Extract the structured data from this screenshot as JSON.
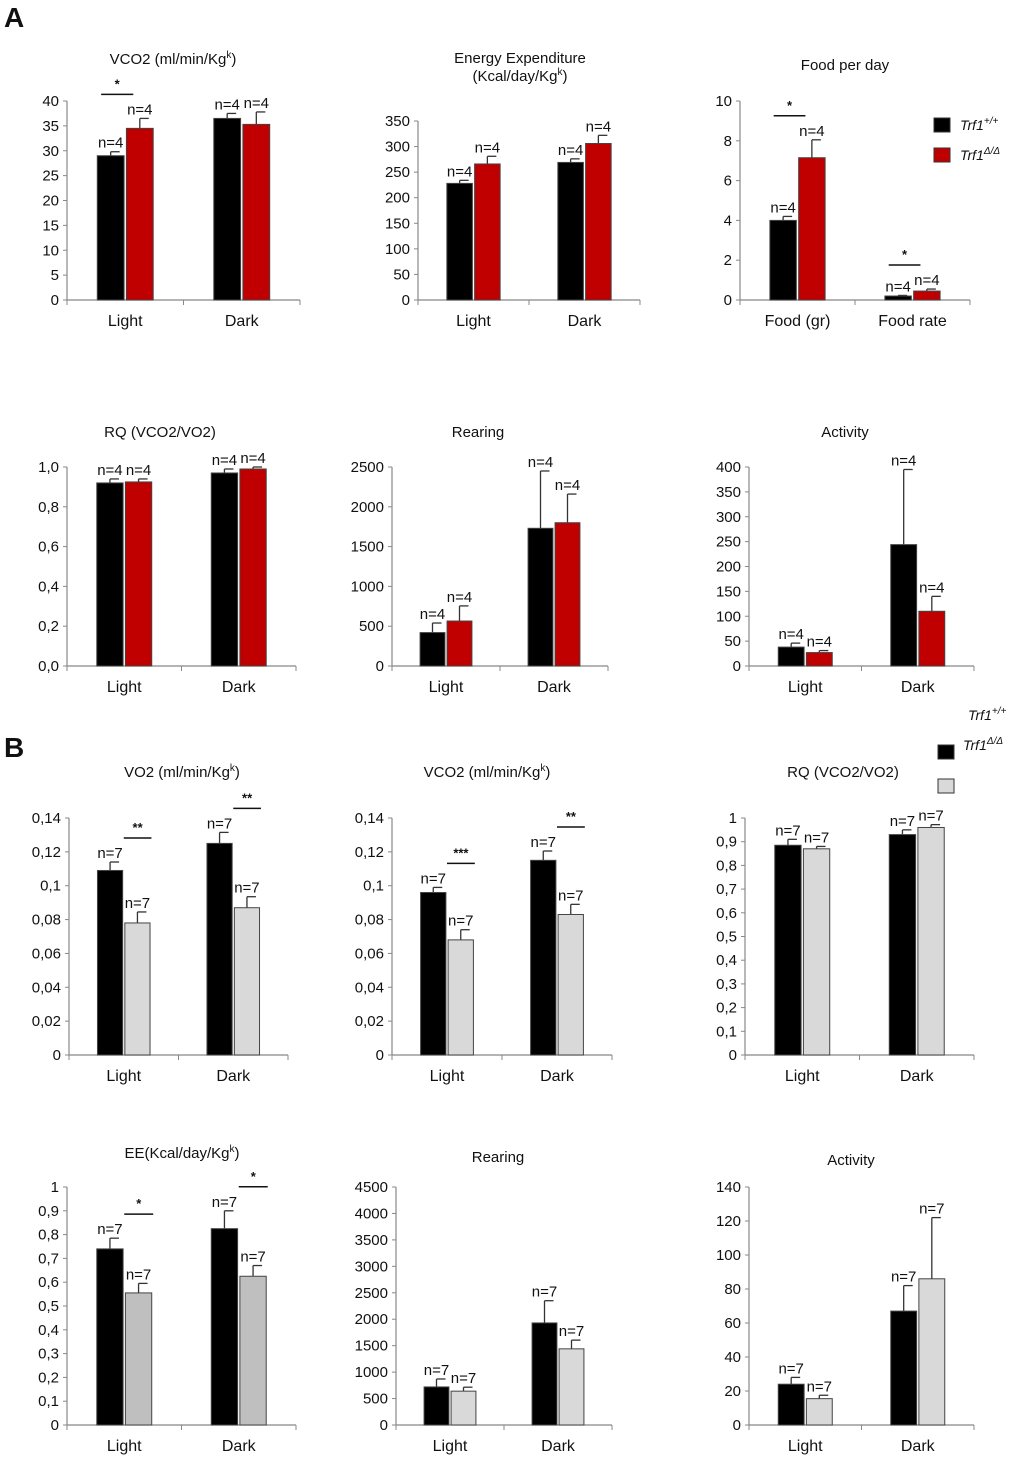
{
  "figure": {
    "panel_labels": [
      "A",
      "B"
    ]
  },
  "chart_data": [
    {
      "panel": "A",
      "type": "bar",
      "title": "VCO2 (ml/min/Kg",
      "title_sup": "k",
      "title_end": ")",
      "categories": [
        "Light",
        "Dark"
      ],
      "series": [
        {
          "name": "Trf1+/+",
          "color": "#000000",
          "values": [
            29,
            36.5
          ],
          "errors": [
            0.8,
            1.0
          ],
          "n": [
            "n=4",
            "n=4"
          ]
        },
        {
          "name": "Trf1Δ/Δ",
          "color": "#c00000",
          "values": [
            34.5,
            35.3
          ],
          "errors": [
            2.0,
            2.5
          ],
          "n": [
            "n=4",
            "n=4"
          ]
        }
      ],
      "ylim": [
        0,
        40
      ],
      "yticks": [
        "0",
        "5",
        "10",
        "15",
        "20",
        "25",
        "30",
        "35",
        "40"
      ],
      "ytick_values": [
        0,
        5,
        10,
        15,
        20,
        25,
        30,
        35,
        40
      ],
      "significance": [
        {
          "category": "Light",
          "label": "*"
        }
      ]
    },
    {
      "panel": "A",
      "type": "bar",
      "title": "Energy Expenditure",
      "title_line2": "(Kcal/day/Kg",
      "title_sup": "k",
      "title_end": ")",
      "categories": [
        "Light",
        "Dark"
      ],
      "series": [
        {
          "name": "Trf1+/+",
          "color": "#000000",
          "values": [
            228,
            269
          ],
          "errors": [
            6,
            7
          ],
          "n": [
            "n=4",
            "n=4"
          ]
        },
        {
          "name": "Trf1Δ/Δ",
          "color": "#c00000",
          "values": [
            266,
            306
          ],
          "errors": [
            15,
            16
          ],
          "n": [
            "n=4",
            "n=4"
          ]
        }
      ],
      "ylim": [
        0,
        350
      ],
      "yticks": [
        "0",
        "50",
        "100",
        "150",
        "200",
        "250",
        "300",
        "350"
      ],
      "ytick_values": [
        0,
        50,
        100,
        150,
        200,
        250,
        300,
        350
      ],
      "significance": []
    },
    {
      "panel": "A",
      "type": "bar",
      "title": "Food per day",
      "categories": [
        "Food (gr)",
        "Food rate"
      ],
      "series": [
        {
          "name": "Trf1+/+",
          "color": "#000000",
          "values": [
            4.0,
            0.2
          ],
          "errors": [
            0.2,
            0.03
          ],
          "n": [
            "n=4",
            "n=4"
          ]
        },
        {
          "name": "Trf1Δ/Δ",
          "color": "#c00000",
          "values": [
            7.15,
            0.45
          ],
          "errors": [
            0.9,
            0.1
          ],
          "n": [
            "n=4",
            "n=4"
          ]
        }
      ],
      "ylim": [
        0,
        10
      ],
      "yticks": [
        "0",
        "2",
        "4",
        "6",
        "8",
        "10"
      ],
      "ytick_values": [
        0,
        2,
        4,
        6,
        8,
        10
      ],
      "significance": [
        {
          "category": "Food (gr)",
          "label": "*"
        },
        {
          "category": "Food rate",
          "label": "*"
        }
      ],
      "legend": {
        "placement": "top-right",
        "entries": [
          {
            "label": "Trf1",
            "sup": "+/+",
            "color": "#000000"
          },
          {
            "label": "Trf1",
            "sup": "Δ/Δ",
            "color": "#c00000"
          }
        ]
      }
    },
    {
      "panel": "A",
      "type": "bar",
      "title": "RQ (VCO2/VO2)",
      "categories": [
        "Light",
        "Dark"
      ],
      "series": [
        {
          "name": "Trf1+/+",
          "color": "#000000",
          "values": [
            0.92,
            0.97
          ],
          "errors": [
            0.02,
            0.02
          ],
          "n": [
            "n=4",
            "n=4"
          ]
        },
        {
          "name": "Trf1Δ/Δ",
          "color": "#c00000",
          "values": [
            0.925,
            0.99
          ],
          "errors": [
            0.015,
            0.01
          ],
          "n": [
            "n=4",
            "n=4"
          ]
        }
      ],
      "ylim": [
        0,
        1.0
      ],
      "yticks": [
        "0,0",
        "0,2",
        "0,4",
        "0,6",
        "0,8",
        "1,0"
      ],
      "ytick_values": [
        0,
        0.2,
        0.4,
        0.6,
        0.8,
        1.0
      ],
      "significance": []
    },
    {
      "panel": "A",
      "type": "bar",
      "title": "Rearing",
      "categories": [
        "Light",
        "Dark"
      ],
      "series": [
        {
          "name": "Trf1+/+",
          "color": "#000000",
          "values": [
            420,
            1730
          ],
          "errors": [
            120,
            720
          ],
          "n": [
            "n=4",
            "n=4"
          ]
        },
        {
          "name": "Trf1Δ/Δ",
          "color": "#c00000",
          "values": [
            565,
            1800
          ],
          "errors": [
            190,
            360
          ],
          "n": [
            "n=4",
            "n=4"
          ]
        }
      ],
      "ylim": [
        0,
        2500
      ],
      "yticks": [
        "0",
        "500",
        "1000",
        "1500",
        "2000",
        "2500"
      ],
      "ytick_values": [
        0,
        500,
        1000,
        1500,
        2000,
        2500
      ],
      "significance": []
    },
    {
      "panel": "A",
      "type": "bar",
      "title": "Activity",
      "categories": [
        "Light",
        "Dark"
      ],
      "series": [
        {
          "name": "Trf1+/+",
          "color": "#000000",
          "values": [
            38,
            244
          ],
          "errors": [
            8,
            151
          ],
          "n": [
            "n=4",
            "n=4"
          ]
        },
        {
          "name": "Trf1Δ/Δ",
          "color": "#c00000",
          "values": [
            27,
            110
          ],
          "errors": [
            4,
            30
          ],
          "n": [
            "n=4",
            "n=4"
          ]
        }
      ],
      "ylim": [
        0,
        400
      ],
      "yticks": [
        "0",
        "50",
        "100",
        "150",
        "200",
        "250",
        "300",
        "350",
        "400"
      ],
      "ytick_values": [
        0,
        50,
        100,
        150,
        200,
        250,
        300,
        350,
        400
      ],
      "significance": []
    },
    {
      "panel": "B",
      "type": "bar",
      "title": "VO2 (ml/min/Kg",
      "title_sup": "k",
      "title_end": ")",
      "categories": [
        "Light",
        "Dark"
      ],
      "series": [
        {
          "name": "Trf1+/+",
          "color": "#000000",
          "values": [
            0.109,
            0.125
          ],
          "errors": [
            0.005,
            0.0065
          ],
          "n": [
            "n=7",
            "n=7"
          ]
        },
        {
          "name": "Trf1Δ/Δ",
          "color": "#d9d9d9",
          "values": [
            0.078,
            0.087
          ],
          "errors": [
            0.0065,
            0.0065
          ],
          "n": [
            "n=7",
            "n=7"
          ]
        }
      ],
      "ylim": [
        0,
        0.14
      ],
      "yticks": [
        "0",
        "0,02",
        "0,04",
        "0,06",
        "0,08",
        "0,1",
        "0,12",
        "0,14"
      ],
      "ytick_values": [
        0,
        0.02,
        0.04,
        0.06,
        0.08,
        0.1,
        0.12,
        0.14
      ],
      "significance": [
        {
          "category": "Light",
          "label": "**"
        },
        {
          "category": "Dark",
          "label": "**"
        }
      ]
    },
    {
      "panel": "B",
      "type": "bar",
      "title": "VCO2 (ml/min/Kg",
      "title_sup": "k",
      "title_end": ")",
      "categories": [
        "Light",
        "Dark"
      ],
      "series": [
        {
          "name": "Trf1+/+",
          "color": "#000000",
          "values": [
            0.096,
            0.115
          ],
          "errors": [
            0.003,
            0.0055
          ],
          "n": [
            "n=7",
            "n=7"
          ]
        },
        {
          "name": "Trf1Δ/Δ",
          "color": "#d9d9d9",
          "values": [
            0.068,
            0.083
          ],
          "errors": [
            0.006,
            0.006
          ],
          "n": [
            "n=7",
            "n=7"
          ]
        }
      ],
      "ylim": [
        0,
        0.14
      ],
      "yticks": [
        "0",
        "0,02",
        "0,04",
        "0,06",
        "0,08",
        "0,1",
        "0,12",
        "0,14"
      ],
      "ytick_values": [
        0,
        0.02,
        0.04,
        0.06,
        0.08,
        0.1,
        0.12,
        0.14
      ],
      "significance": [
        {
          "category": "Light",
          "label": "***"
        },
        {
          "category": "Dark",
          "label": "**"
        }
      ]
    },
    {
      "panel": "B",
      "type": "bar",
      "title": "RQ (VCO2/VO2)",
      "categories": [
        "Light",
        "Dark"
      ],
      "series": [
        {
          "name": "Trf1+/+",
          "color": "#000000",
          "values": [
            0.885,
            0.93
          ],
          "errors": [
            0.025,
            0.02
          ],
          "n": [
            "n=7",
            "n=7"
          ]
        },
        {
          "name": "Trf1Δ/Δ",
          "color": "#d9d9d9",
          "values": [
            0.87,
            0.96
          ],
          "errors": [
            0.01,
            0.012
          ],
          "n": [
            "n=7",
            "n=7"
          ]
        }
      ],
      "ylim": [
        0,
        1
      ],
      "yticks": [
        "0",
        "0,1",
        "0,2",
        "0,3",
        "0,4",
        "0,5",
        "0,6",
        "0,7",
        "0,8",
        "0,9",
        "1"
      ],
      "ytick_values": [
        0,
        0.1,
        0.2,
        0.3,
        0.4,
        0.5,
        0.6,
        0.7,
        0.8,
        0.9,
        1
      ],
      "significance": [],
      "legend": {
        "placement": "top-right",
        "entries": [
          {
            "label": "Trf1",
            "sup": "+/+",
            "color": "#000000"
          },
          {
            "label": "Trf1",
            "sup": "Δ/Δ",
            "color": "#d9d9d9"
          }
        ]
      }
    },
    {
      "panel": "B",
      "type": "bar",
      "title": "EE(Kcal/day/Kg",
      "title_sup": "k",
      "title_end": ")",
      "categories": [
        "Light",
        "Dark"
      ],
      "series": [
        {
          "name": "Trf1+/+",
          "color": "#000000",
          "values": [
            0.74,
            0.825
          ],
          "errors": [
            0.045,
            0.075
          ],
          "n": [
            "n=7",
            "n=7"
          ]
        },
        {
          "name": "Trf1Δ/Δ",
          "color": "#bfbfbf",
          "values": [
            0.555,
            0.625
          ],
          "errors": [
            0.04,
            0.045
          ],
          "n": [
            "n=7",
            "n=7"
          ]
        }
      ],
      "ylim": [
        0,
        1
      ],
      "yticks": [
        "0",
        "0,1",
        "0,2",
        "0,3",
        "0,4",
        "0,5",
        "0,6",
        "0,7",
        "0,8",
        "0,9",
        "1"
      ],
      "ytick_values": [
        0,
        0.1,
        0.2,
        0.3,
        0.4,
        0.5,
        0.6,
        0.7,
        0.8,
        0.9,
        1
      ],
      "significance": [
        {
          "category": "Light",
          "label": "*"
        },
        {
          "category": "Dark",
          "label": "*"
        }
      ]
    },
    {
      "panel": "B",
      "type": "bar",
      "title": "Rearing",
      "categories": [
        "Light",
        "Dark"
      ],
      "series": [
        {
          "name": "Trf1+/+",
          "color": "#000000",
          "values": [
            720,
            1930
          ],
          "errors": [
            150,
            420
          ],
          "n": [
            "n=7",
            "n=7"
          ]
        },
        {
          "name": "Trf1Δ/Δ",
          "color": "#d9d9d9",
          "values": [
            640,
            1440
          ],
          "errors": [
            75,
            165
          ],
          "n": [
            "n=7",
            "n=7"
          ]
        }
      ],
      "ylim": [
        0,
        4500
      ],
      "yticks": [
        "0",
        "500",
        "1000",
        "1500",
        "2000",
        "2500",
        "3000",
        "3500",
        "4000",
        "4500"
      ],
      "ytick_values": [
        0,
        500,
        1000,
        1500,
        2000,
        2500,
        3000,
        3500,
        4000,
        4500
      ],
      "significance": []
    },
    {
      "panel": "B",
      "type": "bar",
      "title": "Activity",
      "categories": [
        "Light",
        "Dark"
      ],
      "series": [
        {
          "name": "Trf1+/+",
          "color": "#000000",
          "values": [
            24,
            67
          ],
          "errors": [
            4,
            15
          ],
          "n": [
            "n=7",
            "n=7"
          ]
        },
        {
          "name": "Trf1Δ/Δ",
          "color": "#d9d9d9",
          "values": [
            15.5,
            86
          ],
          "errors": [
            2,
            36
          ],
          "n": [
            "n=7",
            "n=7"
          ]
        }
      ],
      "ylim": [
        0,
        140
      ],
      "yticks": [
        "0",
        "20",
        "40",
        "60",
        "80",
        "100",
        "120",
        "140"
      ],
      "ytick_values": [
        0,
        20,
        40,
        60,
        80,
        100,
        120,
        140
      ],
      "significance": []
    }
  ]
}
